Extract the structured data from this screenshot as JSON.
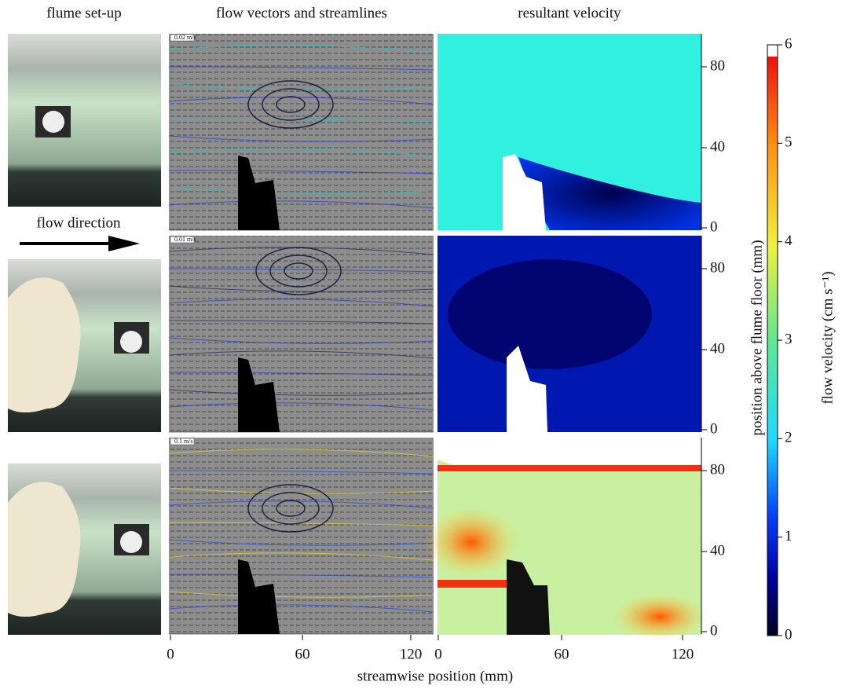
{
  "column_titles": [
    "flume set-up",
    "flow vectors and streamlines",
    "resultant velocity"
  ],
  "flow_direction": "flow direction",
  "rows": [
    {
      "vector_scale": "0.02 m/s",
      "y_ticks": [
        "0",
        "40",
        "80"
      ]
    },
    {
      "vector_scale": "0.01 m/s",
      "y_ticks": [
        "0",
        "40",
        "80"
      ]
    },
    {
      "vector_scale": "0.1 m/s",
      "y_ticks": [
        "0",
        "40",
        "80"
      ]
    }
  ],
  "x_axis": {
    "label": "streamwise position (mm)",
    "ticks": [
      "0",
      "60",
      "120"
    ]
  },
  "y_axis": {
    "label": "position above flume floor (mm)"
  },
  "colorbar": {
    "label": "flow velocity (cm s⁻¹)",
    "ticks": [
      "0",
      "1",
      "2",
      "3",
      "4",
      "5",
      "6"
    ]
  }
}
